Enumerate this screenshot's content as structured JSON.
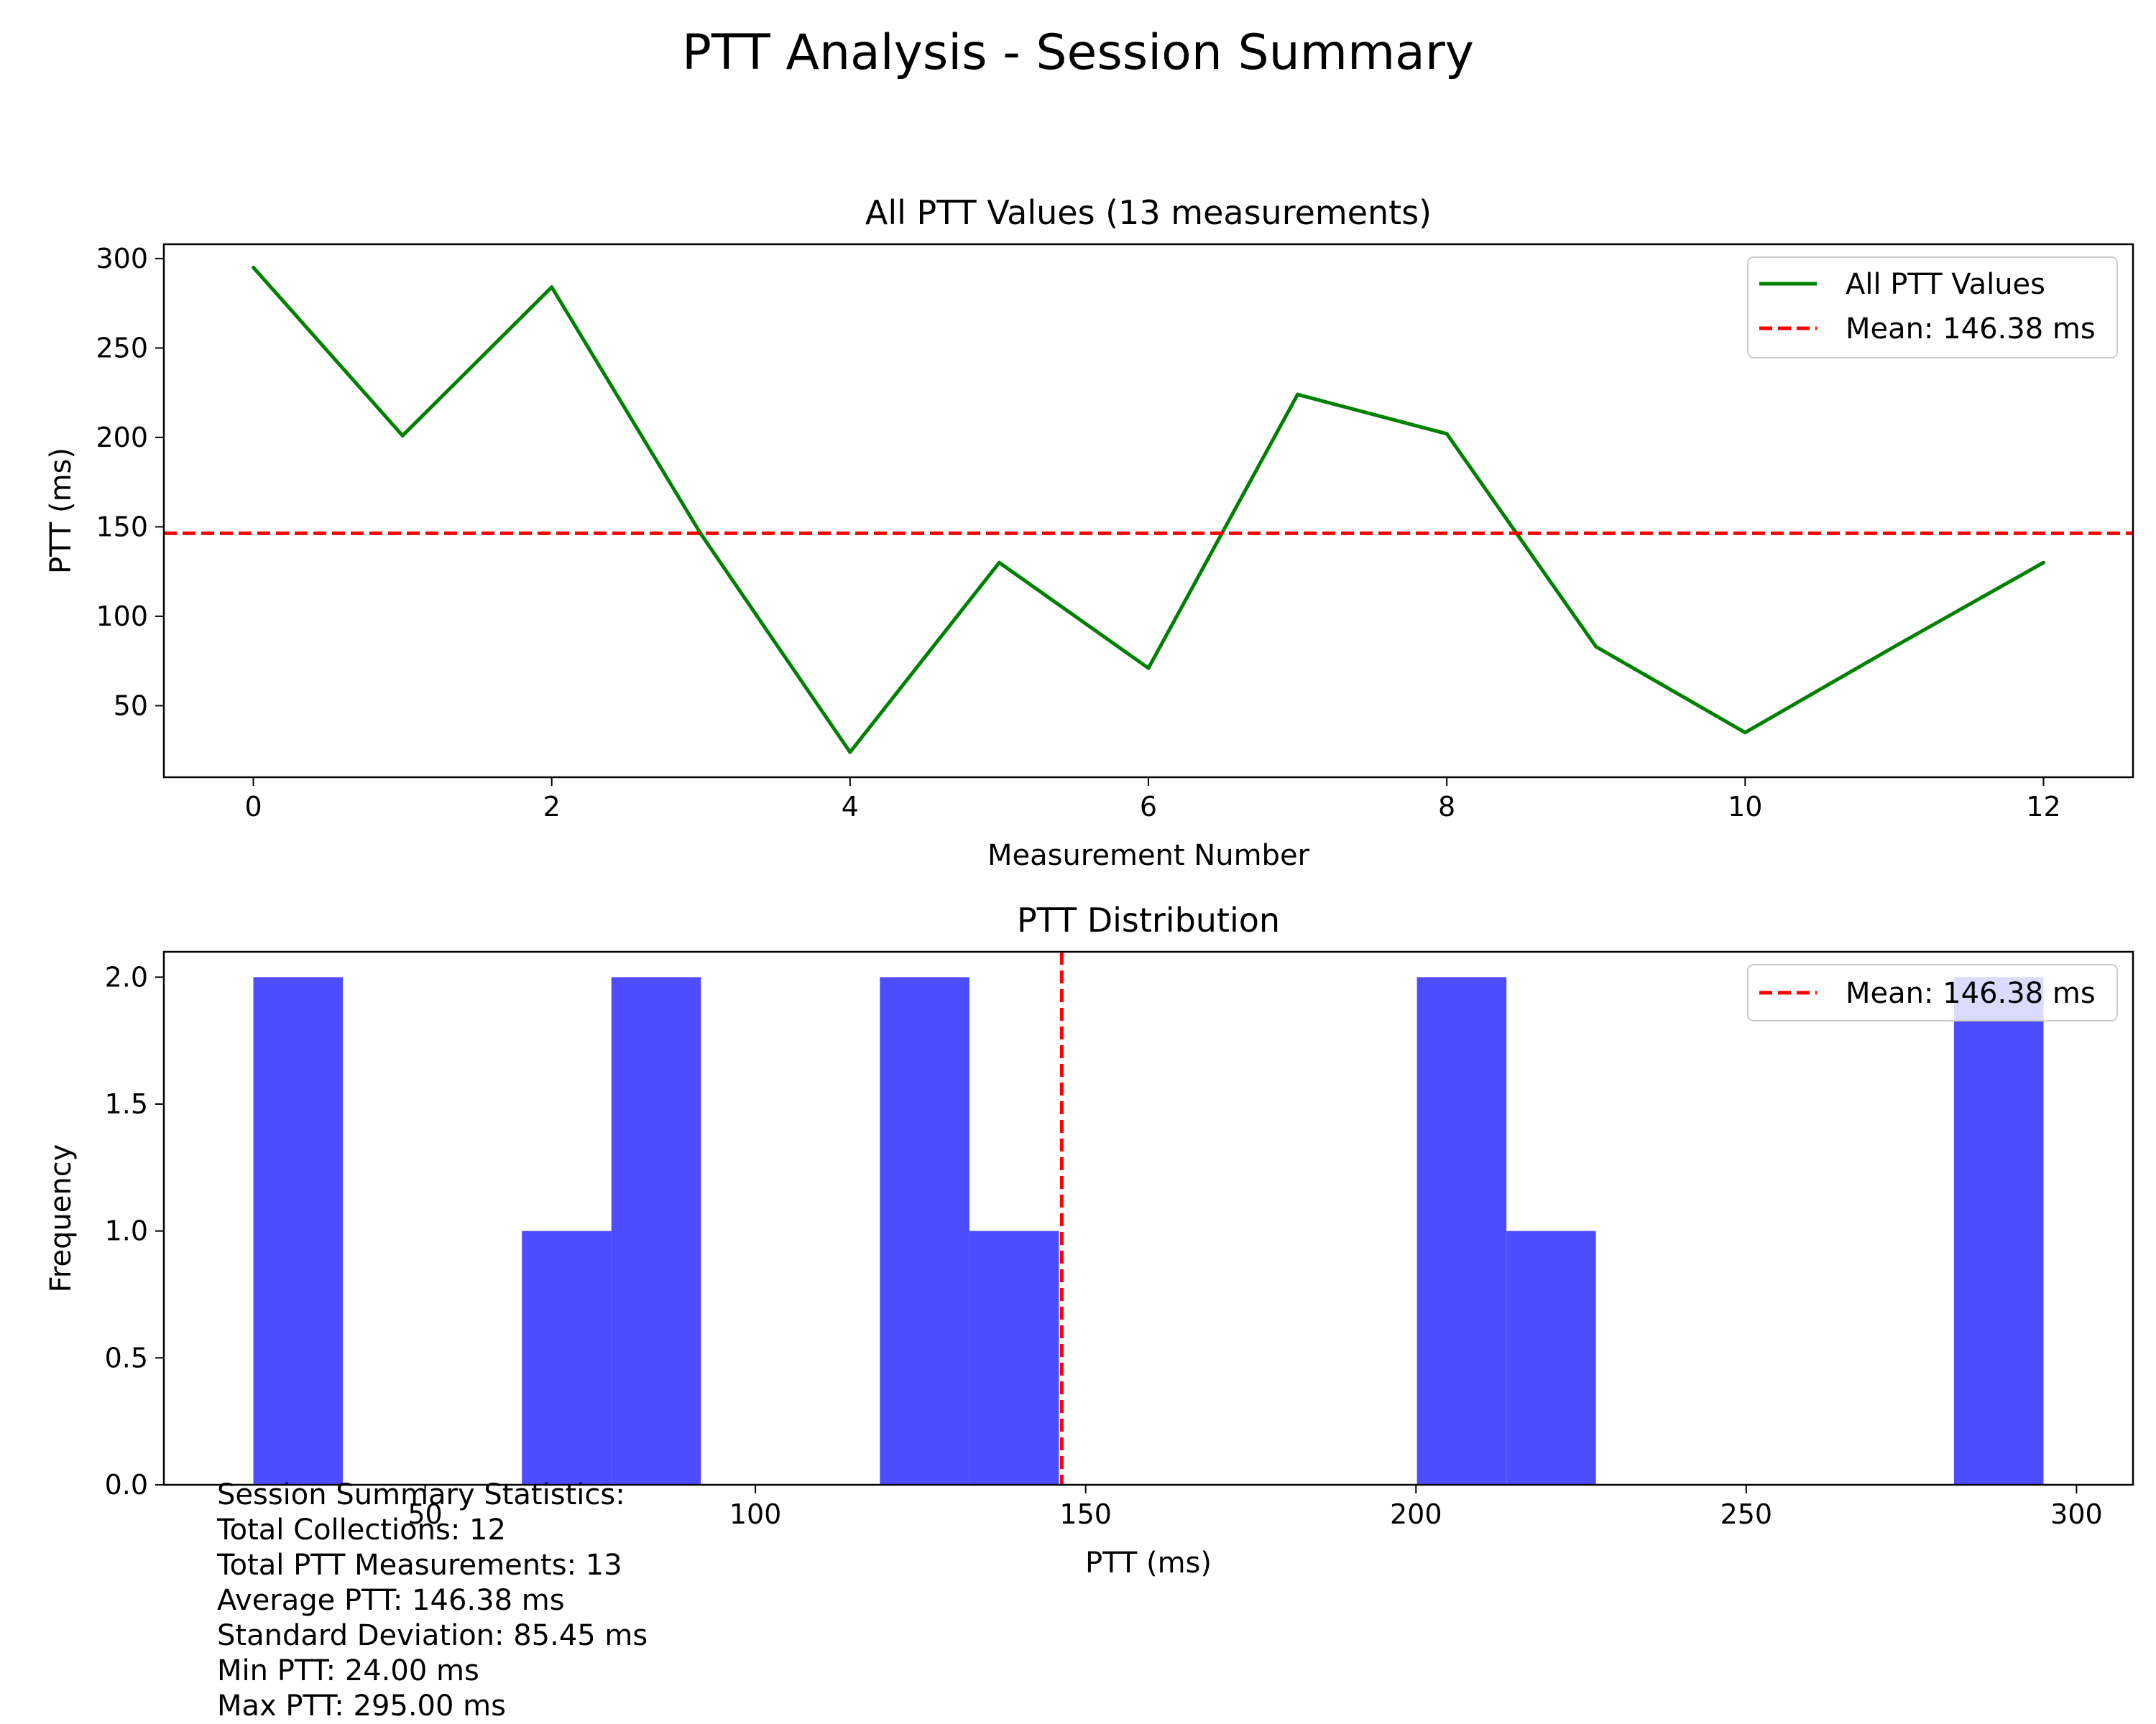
{
  "figure": {
    "title": "PTT Analysis - Session Summary"
  },
  "colors": {
    "line": "#008000",
    "mean": "#ff0000",
    "bars": "#4d4dff"
  },
  "chart_data": [
    {
      "type": "line",
      "title": "All PTT Values (13 measurements)",
      "xlabel": "Measurement Number",
      "ylabel": "PTT (ms)",
      "x": [
        0,
        1,
        2,
        3,
        4,
        5,
        6,
        7,
        8,
        9,
        10,
        11,
        12
      ],
      "series": [
        {
          "name": "All PTT Values",
          "values": [
            295,
            201,
            284,
            146,
            24,
            130,
            71,
            224,
            202,
            83,
            35,
            83,
            130
          ]
        }
      ],
      "mean_line": {
        "label": "Mean: 146.38 ms",
        "value": 146.38
      },
      "xlim": [
        -0.6,
        12.6
      ],
      "ylim": [
        10,
        308
      ],
      "xticks": [
        0,
        2,
        4,
        6,
        8,
        10,
        12
      ],
      "yticks": [
        50,
        100,
        150,
        200,
        250,
        300
      ],
      "legend": "top-right",
      "grid": false
    },
    {
      "type": "bar",
      "subtype": "histogram",
      "title": "PTT Distribution",
      "xlabel": "PTT (ms)",
      "ylabel": "Frequency",
      "bins": [
        {
          "start": 24.0,
          "end": 37.55,
          "count": 2
        },
        {
          "start": 37.55,
          "end": 51.1,
          "count": 0
        },
        {
          "start": 51.1,
          "end": 64.65,
          "count": 0
        },
        {
          "start": 64.65,
          "end": 78.2,
          "count": 1
        },
        {
          "start": 78.2,
          "end": 91.75,
          "count": 2
        },
        {
          "start": 91.75,
          "end": 105.3,
          "count": 0
        },
        {
          "start": 105.3,
          "end": 118.85,
          "count": 0
        },
        {
          "start": 118.85,
          "end": 132.4,
          "count": 2
        },
        {
          "start": 132.4,
          "end": 145.95,
          "count": 1
        },
        {
          "start": 145.95,
          "end": 159.5,
          "count": 0
        },
        {
          "start": 159.5,
          "end": 173.05,
          "count": 0
        },
        {
          "start": 173.05,
          "end": 186.6,
          "count": 0
        },
        {
          "start": 186.6,
          "end": 200.15,
          "count": 0
        },
        {
          "start": 200.15,
          "end": 213.7,
          "count": 2
        },
        {
          "start": 213.7,
          "end": 227.25,
          "count": 1
        },
        {
          "start": 227.25,
          "end": 240.8,
          "count": 0
        },
        {
          "start": 240.8,
          "end": 254.35,
          "count": 0
        },
        {
          "start": 254.35,
          "end": 267.9,
          "count": 0
        },
        {
          "start": 267.9,
          "end": 281.45,
          "count": 0
        },
        {
          "start": 281.45,
          "end": 295.0,
          "count": 2
        }
      ],
      "mean_line": {
        "label": "Mean: 146.38 ms",
        "value": 146.38
      },
      "xlim": [
        10.45,
        308.55
      ],
      "ylim": [
        0,
        2.1
      ],
      "xticks": [
        50,
        100,
        150,
        200,
        250,
        300
      ],
      "yticks": [
        0.0,
        0.5,
        1.0,
        1.5,
        2.0
      ],
      "ytick_labels": [
        "0.0",
        "0.5",
        "1.0",
        "1.5",
        "2.0"
      ],
      "legend": "top-right",
      "grid": false
    }
  ],
  "stats": {
    "lines": [
      "Session Summary Statistics:",
      "Total Collections: 12",
      "Total PTT Measurements: 13",
      "Average PTT: 146.38 ms",
      "Standard Deviation: 85.45 ms",
      "Min PTT: 24.00 ms",
      "Max PTT: 295.00 ms"
    ]
  }
}
